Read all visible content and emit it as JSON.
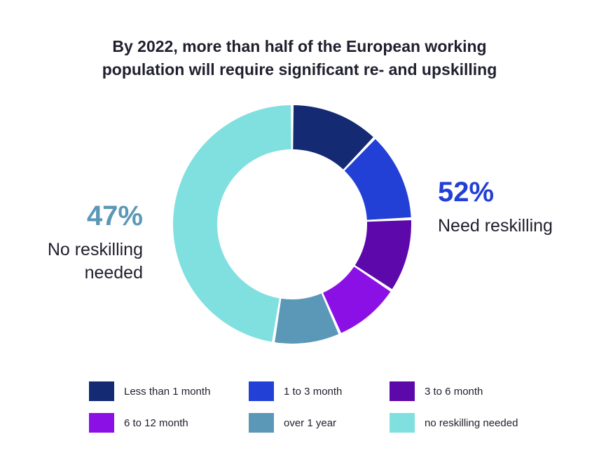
{
  "chart_data": {
    "type": "pie",
    "title_lines": [
      "By 2022, more than half of the European working",
      "population will require significant re- and upskilling"
    ],
    "categories": [
      "Less than 1 month",
      "1 to 3 month",
      "3 to 6 month",
      "6 to 12 month",
      "over 1 year",
      "no reskilling needed"
    ],
    "values": [
      12,
      12,
      10,
      9,
      9,
      47
    ],
    "colors": [
      "#142a73",
      "#2340d6",
      "#5d08ab",
      "#8b10e6",
      "#5b97b7",
      "#80e0df"
    ],
    "legend_position": "bottom",
    "callouts": {
      "reskill": {
        "value": "52%",
        "label": "Need reskilling",
        "color": "#2340d6"
      },
      "no_reskill": {
        "value": "47%",
        "label_lines": [
          "No reskilling",
          "needed"
        ],
        "color": "#5b97b7"
      }
    }
  }
}
